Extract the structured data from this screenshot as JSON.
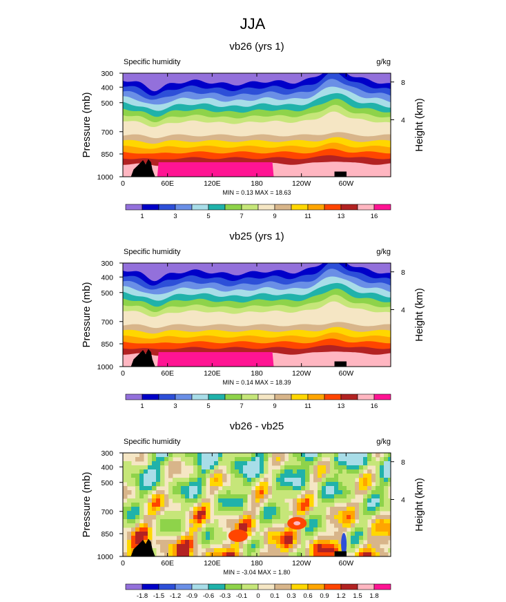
{
  "figure": {
    "title": "JJA"
  },
  "chart_data": [
    {
      "type": "heatmap",
      "title": "vb26 (yrs 1)",
      "subtitle_left": "Specific humidity",
      "units": "g/kg",
      "ylabel": "Pressure (mb)",
      "ylabel_right": "Height (km)",
      "x_tick_labels": [
        "0",
        "60E",
        "120E",
        "180",
        "120W",
        "60W"
      ],
      "y_tick_labels": [
        "300",
        "400",
        "500",
        "700",
        "850",
        "1000"
      ],
      "y_right_tick_labels": [
        "8",
        "4"
      ],
      "stats_text": "MIN =   0.13  MAX =  18.63",
      "min": 0.13,
      "max": 18.63,
      "colorbar_labels": [
        "1",
        "3",
        "5",
        "7",
        "9",
        "11",
        "13",
        "16"
      ]
    },
    {
      "type": "heatmap",
      "title": "vb25 (yrs 1)",
      "subtitle_left": "Specific humidity",
      "units": "g/kg",
      "ylabel": "Pressure (mb)",
      "ylabel_right": "Height (km)",
      "x_tick_labels": [
        "0",
        "60E",
        "120E",
        "180",
        "120W",
        "60W"
      ],
      "y_tick_labels": [
        "300",
        "400",
        "500",
        "700",
        "850",
        "1000"
      ],
      "y_right_tick_labels": [
        "8",
        "4"
      ],
      "stats_text": "MIN =   0.14  MAX =  18.39",
      "min": 0.14,
      "max": 18.39,
      "colorbar_labels": [
        "1",
        "3",
        "5",
        "7",
        "9",
        "11",
        "13",
        "16"
      ]
    },
    {
      "type": "heatmap",
      "title": "vb26 - vb25",
      "subtitle_left": "Specific humidity",
      "units": "g/kg",
      "ylabel": "Pressure (mb)",
      "ylabel_right": "Height (km)",
      "x_tick_labels": [
        "0",
        "60E",
        "120E",
        "180",
        "120W",
        "60W"
      ],
      "y_tick_labels": [
        "300",
        "400",
        "500",
        "700",
        "850",
        "1000"
      ],
      "y_right_tick_labels": [
        "8",
        "4"
      ],
      "stats_text": "MIN =  -3.04  MAX =   1.80",
      "min": -3.04,
      "max": 1.8,
      "colorbar_labels": [
        "-1.8",
        "-1.5",
        "-1.2",
        "-0.9",
        "-0.6",
        "-0.3",
        "-0.1",
        "0",
        "0.1",
        "0.3",
        "0.6",
        "0.9",
        "1.2",
        "1.5",
        "1.8"
      ]
    }
  ],
  "palettes": {
    "abs": [
      "#9370db",
      "#0000c8",
      "#2d4fd8",
      "#6a8fe6",
      "#a8dde8",
      "#20b2aa",
      "#8ed34a",
      "#c6e679",
      "#f5e6c4",
      "#d8b58a",
      "#ffd700",
      "#ffa500",
      "#ff4500",
      "#b22222",
      "#ffb6c1",
      "#ff1493"
    ],
    "diff": [
      "#9370db",
      "#0000c8",
      "#2d4fd8",
      "#6a8fe6",
      "#a8dde8",
      "#20b2aa",
      "#8ed34a",
      "#c6e679",
      "#f5e6c4",
      "#d8b58a",
      "#ffd700",
      "#ffa500",
      "#ff4500",
      "#b22222",
      "#ffb6c1",
      "#ff1493"
    ],
    "terrain": "#000000"
  }
}
